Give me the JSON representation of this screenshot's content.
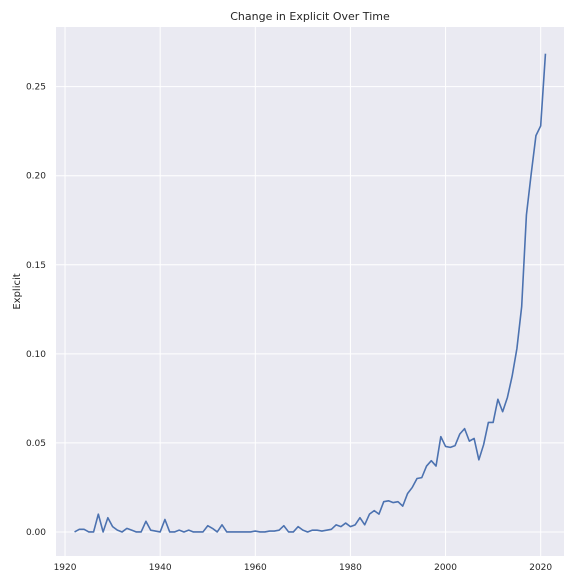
{
  "chart_data": {
    "type": "line",
    "title": "Change in Explicit Over Time",
    "xlabel": "",
    "ylabel": "Explicit",
    "xlim": [
      1918.1,
      2024.9
    ],
    "ylim": [
      -0.0135,
      0.2835
    ],
    "xticks": [
      1920,
      1940,
      1960,
      1980,
      2000,
      2020
    ],
    "xtick_labels": [
      "1920",
      "1940",
      "1960",
      "1980",
      "2000",
      "2020"
    ],
    "yticks": [
      0.0,
      0.05,
      0.1,
      0.15,
      0.2,
      0.25
    ],
    "ytick_labels": [
      "0.00",
      "0.05",
      "0.10",
      "0.15",
      "0.20",
      "0.25"
    ],
    "grid": true,
    "legend": "none",
    "colors": {
      "background": "#eaeaf2",
      "grid": "#ffffff",
      "line": "#4c72b0"
    },
    "series": [
      {
        "x": [
          1922,
          1923,
          1924,
          1925,
          1926,
          1927,
          1928,
          1929,
          1930,
          1931,
          1932,
          1933,
          1934,
          1935,
          1936,
          1937,
          1938,
          1939,
          1940,
          1941,
          1942,
          1943,
          1944,
          1945,
          1946,
          1947,
          1948,
          1949,
          1950,
          1951,
          1952,
          1953,
          1954,
          1955,
          1956,
          1957,
          1958,
          1959,
          1960,
          1961,
          1962,
          1963,
          1964,
          1965,
          1966,
          1967,
          1968,
          1969,
          1970,
          1971,
          1972,
          1973,
          1974,
          1975,
          1976,
          1977,
          1978,
          1979,
          1980,
          1981,
          1982,
          1983,
          1984,
          1985,
          1986,
          1987,
          1988,
          1989,
          1990,
          1991,
          1992,
          1993,
          1994,
          1995,
          1996,
          1997,
          1998,
          1999,
          2000,
          2001,
          2002,
          2003,
          2004,
          2005,
          2006,
          2007,
          2008,
          2009,
          2010,
          2011,
          2012,
          2013,
          2014,
          2015,
          2016,
          2017,
          2018,
          2019,
          2020,
          2021
        ],
        "values": [
          0.0,
          0.0015,
          0.0015,
          0.0,
          0.0,
          0.01,
          0.0,
          0.008,
          0.003,
          0.001,
          0.0,
          0.002,
          0.001,
          0.0,
          0.0,
          0.006,
          0.001,
          0.0005,
          0.0,
          0.007,
          0.0,
          0.0,
          0.001,
          0.0,
          0.001,
          0.0,
          0.0,
          0.0,
          0.0035,
          0.002,
          0.0,
          0.004,
          0.0,
          0.0,
          0.0,
          0.0,
          0.0,
          0.0,
          0.0005,
          0.0,
          0.0,
          0.0005,
          0.0005,
          0.001,
          0.0035,
          0.0,
          0.0,
          0.003,
          0.001,
          0.0,
          0.001,
          0.001,
          0.0005,
          0.001,
          0.0015,
          0.004,
          0.003,
          0.005,
          0.003,
          0.004,
          0.008,
          0.004,
          0.01,
          0.012,
          0.01,
          0.017,
          0.0175,
          0.0165,
          0.017,
          0.0145,
          0.0215,
          0.025,
          0.03,
          0.0305,
          0.037,
          0.04,
          0.037,
          0.0535,
          0.048,
          0.0475,
          0.0485,
          0.055,
          0.058,
          0.051,
          0.0525,
          0.0405,
          0.049,
          0.0615,
          0.0615,
          0.0745,
          0.0675,
          0.0755,
          0.0875,
          0.103,
          0.1265,
          0.178,
          0.201,
          0.2225,
          0.228,
          0.2685
        ]
      }
    ]
  }
}
